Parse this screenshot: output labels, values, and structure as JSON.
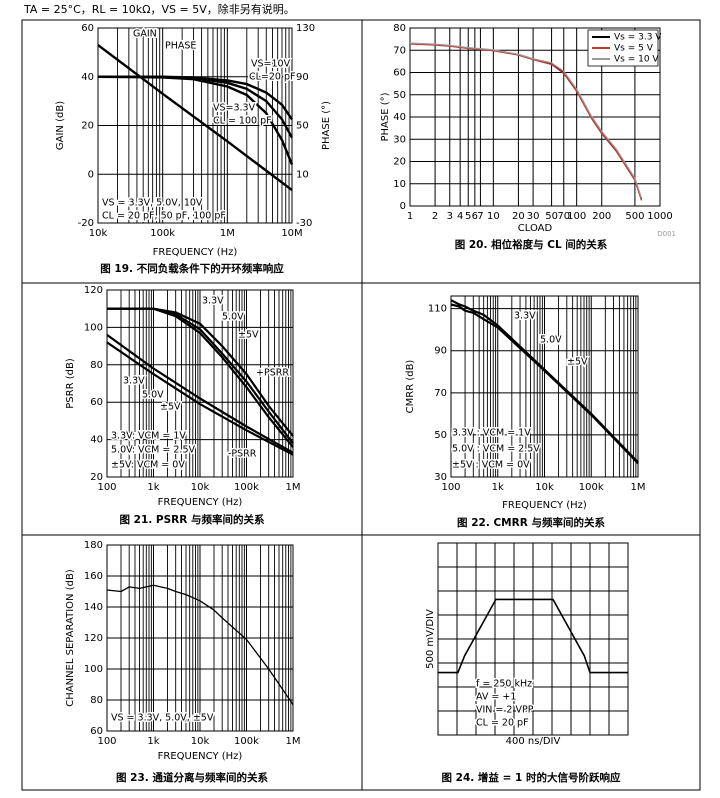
{
  "header": "TA = 25°C，RL = 10kΩ，VS = 5V，除非另有说明。",
  "chart_data": [
    {
      "type": "line",
      "caption": "图 19. 不同负载条件下的开环频率响应",
      "xlabel": "FREQUENCY (Hz)",
      "ylabel": "GAIN (dB)",
      "y2label": "PHASE (°)",
      "xscale": "log",
      "xlim": [
        10000,
        10000000
      ],
      "ylim": [
        -20,
        60
      ],
      "y2lim": [
        -30,
        130
      ],
      "xticks": [
        {
          "value": 10000,
          "label": "10k"
        },
        {
          "value": 100000,
          "label": "100k"
        },
        {
          "value": 1000000,
          "label": "1M"
        },
        {
          "value": 10000000,
          "label": "10M"
        }
      ],
      "yticks": [
        -20,
        0,
        20,
        40,
        60
      ],
      "y2ticks": [
        -30,
        10,
        50,
        90,
        130
      ],
      "grid": true,
      "minor_grid": true,
      "series": [
        {
          "color": "#000",
          "x": [
            10000,
            100000,
            1000000,
            10000000
          ],
          "values": [
            53,
            33,
            13.5,
            -6.5
          ]
        },
        {
          "color": "#000",
          "axis": "y2",
          "x": [
            10000,
            100000,
            300000,
            1000000,
            2000000,
            4000000,
            7000000,
            10000000
          ],
          "values": [
            90,
            90,
            89.5,
            87,
            84,
            77,
            67,
            55
          ]
        },
        {
          "color": "#000",
          "axis": "y2",
          "x": [
            10000,
            100000,
            300000,
            1000000,
            2000000,
            4000000,
            7000000,
            10000000
          ],
          "values": [
            90,
            90,
            89,
            85,
            80,
            70,
            55,
            40
          ]
        },
        {
          "color": "#000",
          "axis": "y2",
          "x": [
            10000,
            100000,
            300000,
            1000000,
            2000000,
            4000000,
            7000000,
            10000000
          ],
          "values": [
            90,
            89.5,
            88,
            82,
            75,
            60,
            38,
            18
          ]
        }
      ],
      "annotations": [
        "GAIN",
        "PHASE",
        "VS=10V",
        "CL=20 pF",
        "VS=3.3V",
        "CL = 100 pF",
        "VS = 3.3V, 5.0V, 10V",
        "CL = 20 pF, 50 pF, 100 pF"
      ]
    },
    {
      "type": "line",
      "caption": "图 20. 相位裕度与 CL 间的关系",
      "xlabel": "CLOAD",
      "ylabel": "PHASE (°)",
      "note": "D001",
      "xscale": "log",
      "xlim": [
        1,
        1000
      ],
      "ylim": [
        0,
        80
      ],
      "xticks": [
        1,
        2,
        3,
        4,
        5,
        6,
        7,
        10,
        20,
        30,
        50,
        70,
        100,
        200,
        500,
        1000
      ],
      "yticks": [
        0,
        10,
        20,
        30,
        40,
        50,
        60,
        70,
        80
      ],
      "grid": true,
      "legend": "upper right",
      "series": [
        {
          "name": "Vs = 3.3 V",
          "color": "#000",
          "x": [
            1,
            2,
            3,
            5,
            10,
            20,
            30,
            50,
            70,
            100,
            150,
            200,
            300,
            500,
            600
          ],
          "values": [
            73,
            72.5,
            72,
            71,
            70,
            68,
            66,
            64,
            60,
            52,
            40,
            33,
            25,
            12,
            3
          ]
        },
        {
          "name": "Vs = 5 V",
          "color": "#c0392b",
          "x": [
            1,
            2,
            3,
            5,
            10,
            20,
            30,
            50,
            70,
            100,
            150,
            200,
            300,
            500,
            600
          ],
          "values": [
            72.8,
            72.3,
            71.8,
            70.8,
            69.8,
            67.8,
            65.8,
            63.6,
            59.5,
            51.5,
            39.5,
            32.5,
            24.5,
            11.5,
            2.5
          ]
        },
        {
          "name": "Vs = 10 V",
          "color": "#999",
          "x": [
            1,
            2,
            3,
            5,
            10,
            20,
            30,
            50,
            70,
            100,
            150,
            200,
            300,
            500,
            600
          ],
          "values": [
            73.2,
            72.7,
            72.2,
            71.2,
            70.2,
            68.2,
            66.2,
            64.3,
            60.5,
            52.5,
            40.5,
            33.5,
            25.5,
            12.5,
            3.5
          ]
        }
      ]
    },
    {
      "type": "line",
      "caption": "图 21. PSRR 与频率间的关系",
      "xlabel": "FREQUENCY (Hz)",
      "ylabel": "PSRR (dB)",
      "xscale": "log",
      "xlim": [
        100,
        1000000
      ],
      "ylim": [
        20,
        120
      ],
      "xticks": [
        100,
        {
          "value": 1000,
          "label": "1k"
        },
        {
          "value": 10000,
          "label": "10k"
        },
        {
          "value": 100000,
          "label": "100k"
        },
        {
          "value": 1000000,
          "label": "1M"
        }
      ],
      "yticks": [
        20,
        40,
        60,
        80,
        100,
        120
      ],
      "grid": true,
      "minor_grid": true,
      "series": [
        {
          "color": "#000",
          "x": [
            100,
            1000,
            3000,
            10000,
            30000,
            100000,
            300000,
            1000000
          ],
          "values": [
            110,
            110,
            108,
            102,
            90,
            75,
            58,
            42
          ]
        },
        {
          "color": "#000",
          "x": [
            100,
            1000,
            3000,
            10000,
            30000,
            100000,
            300000,
            1000000
          ],
          "values": [
            110,
            110,
            107,
            99,
            86,
            71,
            55,
            38
          ]
        },
        {
          "color": "#000",
          "x": [
            100,
            1000,
            3000,
            10000,
            30000,
            100000,
            300000,
            1000000
          ],
          "values": [
            110,
            110,
            106,
            97,
            84,
            68,
            52,
            36
          ]
        },
        {
          "color": "#000",
          "x": [
            100,
            1000,
            10000,
            100000,
            1000000
          ],
          "values": [
            96,
            78,
            62,
            47,
            33
          ]
        },
        {
          "color": "#000",
          "x": [
            100,
            1000,
            10000,
            100000,
            1000000
          ],
          "values": [
            92,
            75,
            59,
            45,
            32
          ]
        }
      ],
      "annotations": [
        "3.3V",
        "5.0V",
        "±5V",
        "+PSRR",
        "3.3V",
        "5.0V",
        "±5V",
        "-PSRR",
        "3.3V: VCM = 1V",
        "5.0V: VCM = 2.5V",
        "±5V: VCM = 0V"
      ]
    },
    {
      "type": "line",
      "caption": "图 22. CMRR 与频率间的关系",
      "xlabel": "FREQUENCY (Hz)",
      "ylabel": "CMRR (dB)",
      "xscale": "log",
      "xlim": [
        100,
        1000000
      ],
      "ylim": [
        30,
        116
      ],
      "xticks": [
        100,
        {
          "value": 1000,
          "label": "1k"
        },
        {
          "value": 10000,
          "label": "10k"
        },
        {
          "value": 100000,
          "label": "100k"
        },
        {
          "value": 1000000,
          "label": "1M"
        }
      ],
      "yticks": [
        30,
        50,
        70,
        90,
        110
      ],
      "grid": true,
      "minor_grid": true,
      "series": [
        {
          "color": "#000",
          "x": [
            100,
            150,
            200,
            300,
            500,
            1000,
            10000,
            100000,
            1000000
          ],
          "values": [
            114,
            112,
            111,
            109,
            107,
            102,
            81,
            60,
            37
          ]
        },
        {
          "color": "#000",
          "x": [
            100,
            150,
            200,
            300,
            500,
            1000,
            10000,
            100000,
            1000000
          ],
          "values": [
            112,
            111,
            109,
            108,
            105,
            101,
            80.5,
            59.5,
            36.5
          ]
        }
      ],
      "annotations": [
        "3.3V",
        "5.0V",
        "±5V",
        "3.3V : VCM = 1V",
        "5.0V : VCM = 2.5V",
        "±5V : VCM = 0V"
      ]
    },
    {
      "type": "line",
      "caption": "图 23. 通道分离与频率间的关系",
      "xlabel": "FREQUENCY (Hz)",
      "ylabel": "CHANNEL SEPARATION (dB)",
      "xscale": "log",
      "xlim": [
        100,
        1000000
      ],
      "ylim": [
        60,
        180
      ],
      "xticks": [
        100,
        {
          "value": 1000,
          "label": "1k"
        },
        {
          "value": 10000,
          "label": "10k"
        },
        {
          "value": 100000,
          "label": "100k"
        },
        {
          "value": 1000000,
          "label": "1M"
        }
      ],
      "yticks": [
        60,
        80,
        100,
        120,
        140,
        160,
        180
      ],
      "grid": true,
      "minor_grid": true,
      "series": [
        {
          "color": "#000",
          "x": [
            100,
            200,
            300,
            500,
            1000,
            2000,
            3000,
            5000,
            10000,
            20000,
            30000,
            100000,
            300000,
            1000000
          ],
          "values": [
            151,
            150,
            153,
            152,
            154,
            152,
            150,
            148,
            144,
            138,
            133,
            119,
            100,
            77
          ]
        }
      ],
      "annotations": [
        "VS = 3.3V, 5.0V, ±5V"
      ]
    },
    {
      "type": "line",
      "caption": "图 24. 增益 = 1 时的大信号阶跃响应",
      "xlabel": "400 ns/DIV",
      "ylabel": "500 mV/DIV",
      "xlim": [
        0,
        10
      ],
      "ylim": [
        0,
        8
      ],
      "divisions": [
        10,
        8
      ],
      "series": [
        {
          "color": "#000",
          "x": [
            0,
            1.05,
            1.4,
            3.05,
            6.05,
            7.7,
            8.0,
            10
          ],
          "values": [
            2.6,
            2.6,
            3.3,
            5.65,
            5.65,
            3.3,
            2.6,
            2.6
          ]
        }
      ],
      "annotations": [
        "f = 250 kHz",
        "AV = +1",
        "VIN = 2 VPP",
        "CL = 20 pF"
      ]
    }
  ]
}
